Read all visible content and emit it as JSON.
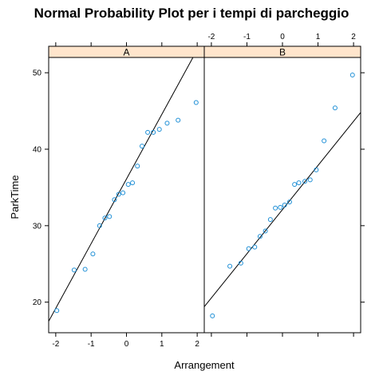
{
  "chart_data": {
    "type": "scatter",
    "title": "Normal Probability Plot per i tempi di parcheggio",
    "xlabel": "Arrangement",
    "ylabel": "ParkTime",
    "xlim": [
      -2.2,
      2.2
    ],
    "ylim": [
      16,
      52
    ],
    "x_ticks": [
      -2,
      -1,
      0,
      1,
      2
    ],
    "y_ticks": [
      20,
      30,
      40,
      50
    ],
    "grid": false,
    "legend": "none",
    "colors": {
      "points": "#1e8fd6",
      "line": "#000000",
      "strip": "#ffe5cc",
      "frame": "#000000"
    },
    "panels": [
      {
        "name": "A",
        "reference_line": {
          "x": [
            -2.2,
            1.88
          ],
          "y": [
            17.5,
            52
          ]
        },
        "points": [
          {
            "x": -1.97,
            "y": 18.9
          },
          {
            "x": -1.48,
            "y": 24.2
          },
          {
            "x": -1.17,
            "y": 24.3
          },
          {
            "x": -0.95,
            "y": 26.3
          },
          {
            "x": -0.76,
            "y": 30.0
          },
          {
            "x": -0.61,
            "y": 31.0
          },
          {
            "x": -0.48,
            "y": 31.2
          },
          {
            "x": -0.34,
            "y": 33.4
          },
          {
            "x": -0.22,
            "y": 34.1
          },
          {
            "x": -0.1,
            "y": 34.3
          },
          {
            "x": 0.05,
            "y": 35.4
          },
          {
            "x": 0.17,
            "y": 35.6
          },
          {
            "x": 0.31,
            "y": 37.8
          },
          {
            "x": 0.44,
            "y": 40.4
          },
          {
            "x": 0.6,
            "y": 42.2
          },
          {
            "x": 0.76,
            "y": 42.2
          },
          {
            "x": 0.93,
            "y": 42.6
          },
          {
            "x": 1.15,
            "y": 43.4
          },
          {
            "x": 1.46,
            "y": 43.8
          },
          {
            "x": 1.97,
            "y": 46.1
          }
        ]
      },
      {
        "name": "B",
        "reference_line": {
          "x": [
            -2.2,
            2.2
          ],
          "y": [
            19.4,
            44.8
          ]
        },
        "points": [
          {
            "x": -1.97,
            "y": 18.2
          },
          {
            "x": -1.48,
            "y": 24.7
          },
          {
            "x": -1.17,
            "y": 25.1
          },
          {
            "x": -0.95,
            "y": 27.0
          },
          {
            "x": -0.78,
            "y": 27.2
          },
          {
            "x": -0.63,
            "y": 28.6
          },
          {
            "x": -0.48,
            "y": 29.3
          },
          {
            "x": -0.34,
            "y": 30.8
          },
          {
            "x": -0.2,
            "y": 32.3
          },
          {
            "x": -0.06,
            "y": 32.4
          },
          {
            "x": 0.06,
            "y": 32.7
          },
          {
            "x": 0.2,
            "y": 33.1
          },
          {
            "x": 0.34,
            "y": 35.4
          },
          {
            "x": 0.46,
            "y": 35.6
          },
          {
            "x": 0.63,
            "y": 35.8
          },
          {
            "x": 0.78,
            "y": 36.0
          },
          {
            "x": 0.95,
            "y": 37.3
          },
          {
            "x": 1.17,
            "y": 41.1
          },
          {
            "x": 1.48,
            "y": 45.4
          },
          {
            "x": 1.97,
            "y": 49.7
          }
        ]
      }
    ]
  }
}
